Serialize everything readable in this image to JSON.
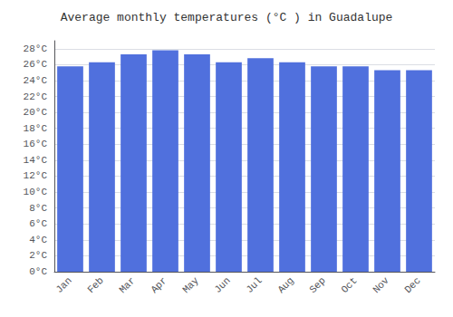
{
  "chart_data": {
    "type": "bar",
    "title": "Average monthly temperatures (°C ) in Guadalupe",
    "categories": [
      "Jan",
      "Feb",
      "Mar",
      "Apr",
      "May",
      "Jun",
      "Jul",
      "Aug",
      "Sep",
      "Oct",
      "Nov",
      "Dec"
    ],
    "values": [
      25.8,
      26.3,
      27.3,
      27.8,
      27.3,
      26.3,
      26.8,
      26.3,
      25.8,
      25.8,
      25.3,
      25.3
    ],
    "ylim": [
      0,
      29
    ],
    "yticks": [
      {
        "value": 0,
        "label": "0°C"
      },
      {
        "value": 2,
        "label": "2°C"
      },
      {
        "value": 4,
        "label": "4°C"
      },
      {
        "value": 6,
        "label": "6°C"
      },
      {
        "value": 8,
        "label": "8°C"
      },
      {
        "value": 10,
        "label": "10°C"
      },
      {
        "value": 12,
        "label": "12°C"
      },
      {
        "value": 14,
        "label": "14°C"
      },
      {
        "value": 16,
        "label": "16°C"
      },
      {
        "value": 18,
        "label": "18°C"
      },
      {
        "value": 20,
        "label": "20°C"
      },
      {
        "value": 22,
        "label": "22°C"
      },
      {
        "value": 24,
        "label": "24°C"
      },
      {
        "value": 26,
        "label": "26°C"
      },
      {
        "value": 28,
        "label": "28°C"
      }
    ],
    "grid": true
  }
}
